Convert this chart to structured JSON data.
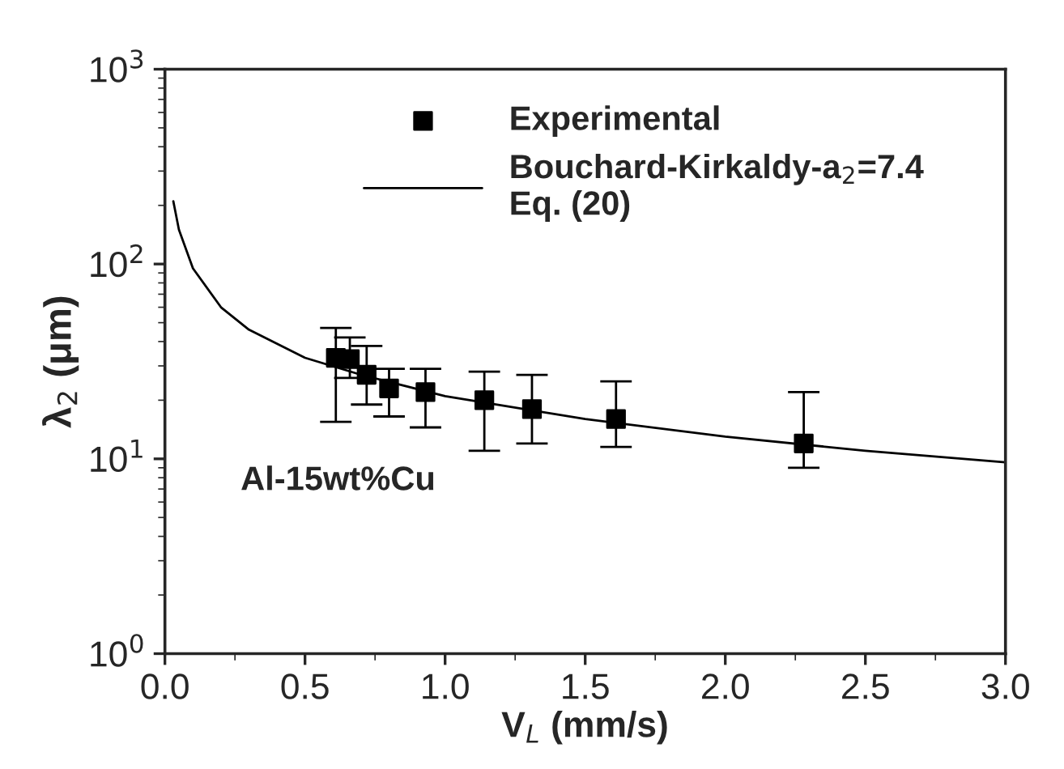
{
  "chart_data": {
    "type": "scatter",
    "xlabel": "V$_{L}$ (mm/s)",
    "ylabel": "λ$_{2}$ (μm)",
    "log": "y",
    "xlim": [
      0.0,
      3.0
    ],
    "xticks": [
      {
        "value": 0.0,
        "label": "0.0"
      },
      0.5,
      {
        "value": 1.0,
        "label": "1.0"
      },
      1.5,
      {
        "value": 2.0,
        "label": "2.0"
      },
      2.5,
      {
        "value": 3.0,
        "label": "3.0"
      }
    ],
    "ylim": [
      1,
      1000
    ],
    "yticks": [
      {
        "value": 1,
        "label": "10$^{0}$"
      },
      {
        "value": 10,
        "label": "10$^{1}$"
      },
      {
        "value": 100,
        "label": "10$^{2}$"
      },
      {
        "value": 1000,
        "label": "10$^{3}$"
      }
    ],
    "series": [
      {
        "name": "Experimental",
        "color": "#000000",
        "marker": "square",
        "x": [
          0.61,
          0.66,
          0.72,
          0.8,
          0.93,
          1.14,
          1.31,
          1.61,
          2.28
        ],
        "values": [
          33,
          32.5,
          27,
          23,
          22,
          20,
          18,
          16,
          12
        ],
        "errors": [
          [
            15.5,
            47
          ],
          [
            26,
            42
          ],
          [
            19,
            38
          ],
          [
            16.5,
            29
          ],
          [
            14.5,
            29
          ],
          [
            11,
            28
          ],
          [
            12,
            27
          ],
          [
            11.5,
            25
          ],
          [
            9,
            22
          ]
        ]
      },
      {
        "name": "Bouchard-Kirkaldy-a$_{2}$=7.4\nEq. (20)",
        "type": "line",
        "color": "#000000",
        "line_style": "solid",
        "x": [
          0.03,
          0.05,
          0.1,
          0.2,
          0.3,
          0.5,
          0.7,
          1.0,
          1.5,
          2.0,
          2.5,
          3.0
        ],
        "values": [
          210,
          150,
          95,
          60,
          46,
          33,
          27,
          21,
          16,
          13,
          11,
          9.6
        ]
      }
    ],
    "annotations": [
      "Al-15wt%Cu"
    ],
    "legend": "top",
    "grid": false
  }
}
